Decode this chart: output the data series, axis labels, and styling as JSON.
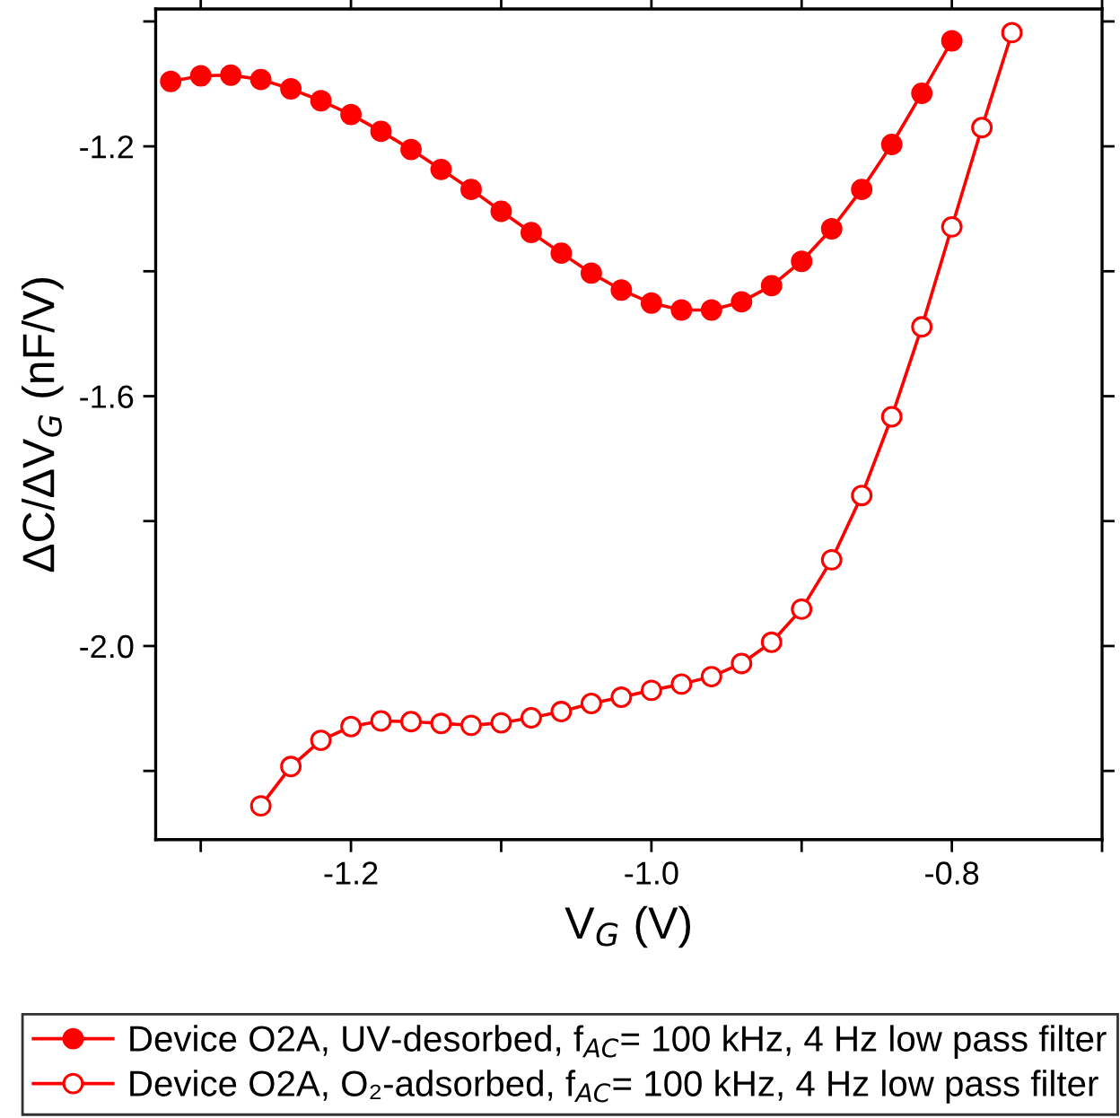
{
  "chart_data": {
    "type": "line",
    "xlabel": "V$_{G}$ (V)",
    "ylabel": "ΔC/ΔV$_{G}$ (nF/V)",
    "xlim": [
      -1.33,
      -0.7
    ],
    "ylim": [
      -2.31,
      -0.98
    ],
    "xticks": [
      {
        "value": -1.3,
        "label": null
      },
      -1.2,
      {
        "value": -1.1,
        "label": null
      },
      {
        "value": -1.0,
        "label": "-1.0"
      },
      {
        "value": -0.9,
        "label": null
      },
      -0.8,
      {
        "value": -0.7,
        "label": null
      }
    ],
    "yticks": [
      {
        "value": -1.0,
        "label": null
      },
      -1.2,
      {
        "value": -1.4,
        "label": null
      },
      -1.6,
      {
        "value": -1.8,
        "label": null
      },
      {
        "value": -2.0,
        "label": "-2.0"
      },
      {
        "value": -2.2,
        "label": null
      }
    ],
    "grid": false,
    "legend": "bottom",
    "line_style": "solid",
    "series": [
      {
        "name": "Device O2A, UV-desorbed, f$_{AC}$= 100 kHz, 4 Hz low pass filter",
        "color": "#ff0000",
        "marker": "circle",
        "x": [
          -1.32,
          -1.3,
          -1.28,
          -1.26,
          -1.24,
          -1.22,
          -1.2,
          -1.18,
          -1.16,
          -1.14,
          -1.12,
          -1.1,
          -1.08,
          -1.06,
          -1.04,
          -1.02,
          -1.0,
          -0.98,
          -0.96,
          -0.94,
          -0.92,
          -0.9,
          -0.88,
          -0.86,
          -0.84,
          -0.82,
          -0.8
        ],
        "values": [
          -1.096,
          -1.087,
          -1.086,
          -1.093,
          -1.108,
          -1.127,
          -1.149,
          -1.176,
          -1.205,
          -1.237,
          -1.269,
          -1.304,
          -1.338,
          -1.371,
          -1.403,
          -1.43,
          -1.451,
          -1.462,
          -1.462,
          -1.449,
          -1.423,
          -1.384,
          -1.332,
          -1.269,
          -1.197,
          -1.115,
          -1.031
        ]
      },
      {
        "name": "Device O2A, O₂-adsorbed, f$_{AC}$= 100 kHz, 4 Hz low pass filter",
        "color": "#ff0000",
        "marker": "circle",
        "colors": [
          "#ffffff",
          "#ffffff",
          "#ffffff",
          "#ffffff",
          "#ffffff",
          "#ffffff",
          "#ffffff",
          "#ffffff",
          "#ffffff",
          "#ffffff",
          "#ffffff",
          "#ffffff",
          "#ffffff",
          "#ffffff",
          "#ffffff",
          "#ffffff",
          "#ffffff",
          "#ffffff",
          "#ffffff",
          "#ffffff",
          "#ffffff",
          "#ffffff",
          "#ffffff",
          "#ffffff",
          "#ffffff",
          "#ffffff"
        ],
        "x": [
          -1.26,
          -1.24,
          -1.22,
          -1.2,
          -1.18,
          -1.16,
          -1.14,
          -1.12,
          -1.1,
          -1.08,
          -1.06,
          -1.04,
          -1.02,
          -1.0,
          -0.98,
          -0.96,
          -0.94,
          -0.92,
          -0.9,
          -0.88,
          -0.86,
          -0.84,
          -0.82,
          -0.8,
          -0.78,
          -0.76
        ],
        "values": [
          -2.256,
          -2.193,
          -2.151,
          -2.129,
          -2.12,
          -2.121,
          -2.124,
          -2.127,
          -2.123,
          -2.115,
          -2.105,
          -2.092,
          -2.082,
          -2.071,
          -2.061,
          -2.049,
          -2.028,
          -1.994,
          -1.941,
          -1.862,
          -1.759,
          -1.633,
          -1.489,
          -1.329,
          -1.17,
          -1.018
        ]
      }
    ]
  }
}
